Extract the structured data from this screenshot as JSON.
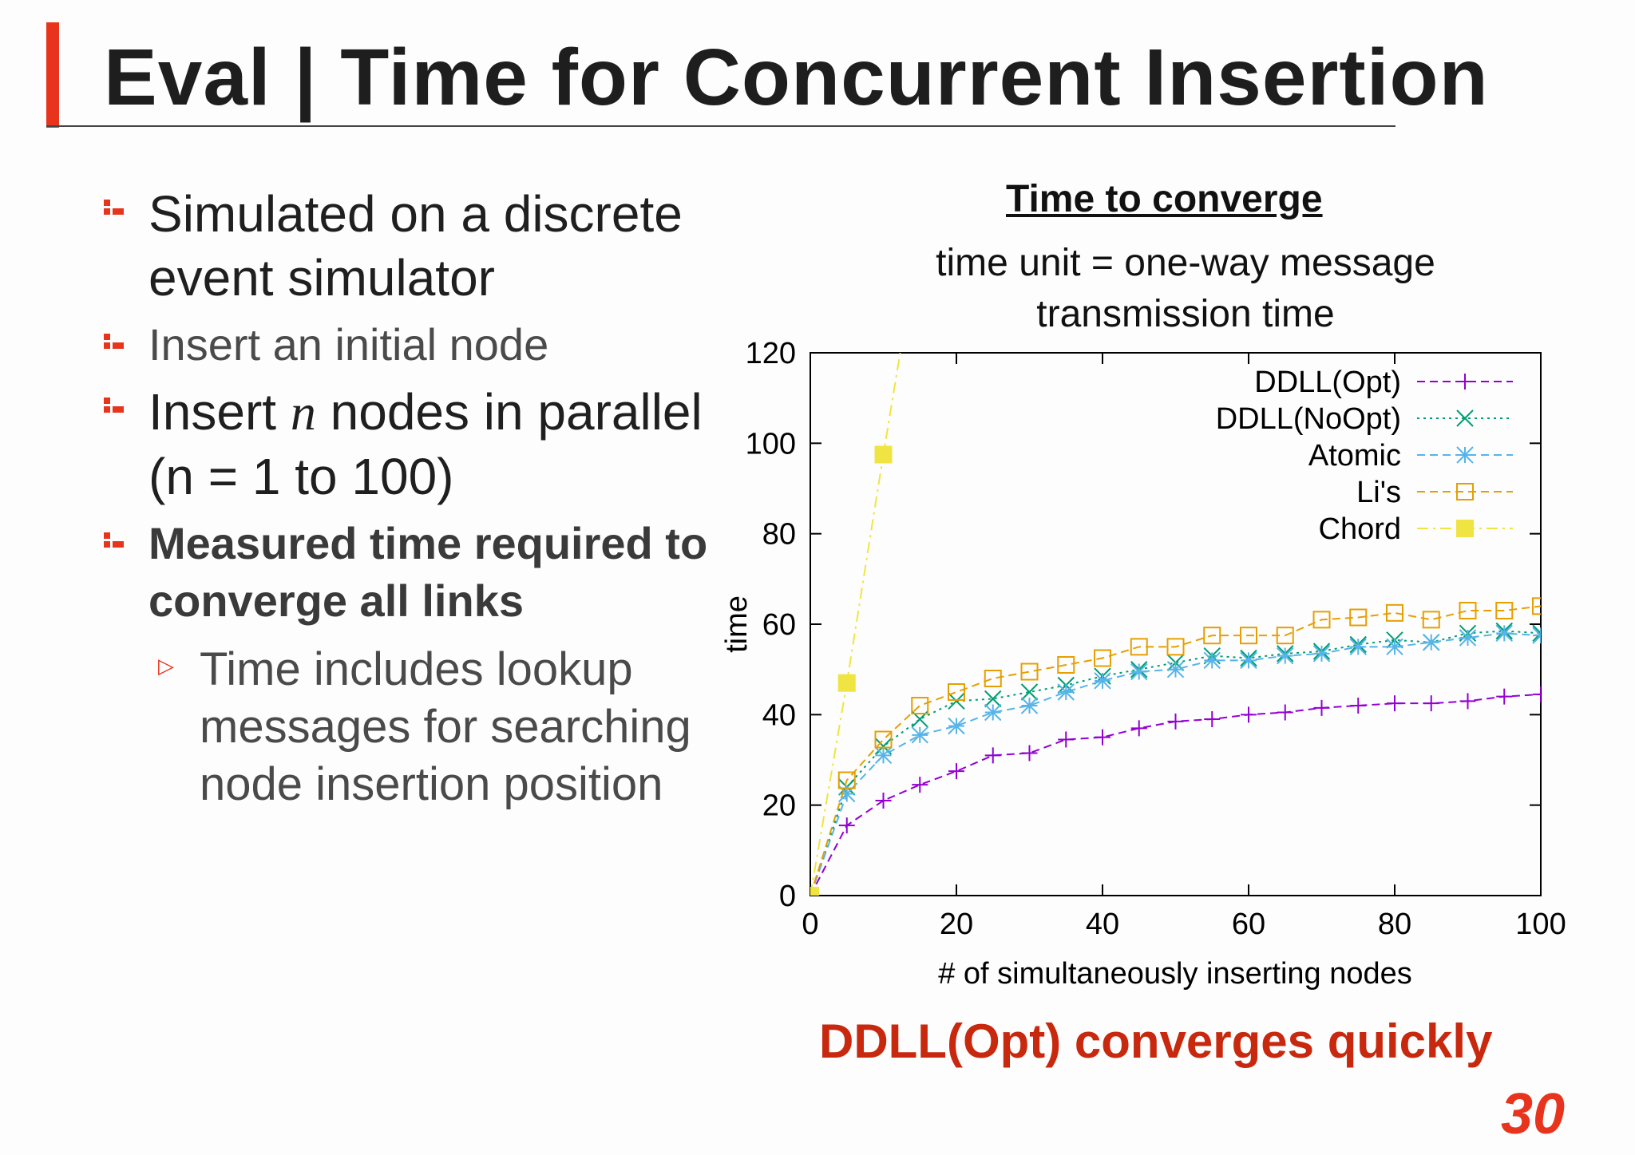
{
  "slide": {
    "title": "Eval | Time for Concurrent Insertion",
    "bullets": [
      "Simulated on a discrete event simulator",
      "Insert an initial node",
      {
        "pre": "Insert ",
        "var": "n",
        "post": " nodes in parallel",
        "line2": "(n = 1 to 100)"
      },
      "Measured time required to converge all links"
    ],
    "sub_bullet": "Time includes lookup messages for searching node insertion position",
    "conclusion": "DDLL(Opt) converges quickly",
    "page_number": "30",
    "accent_color": "#e8341c",
    "conclusion_color": "#c8290e"
  },
  "chart_heading": {
    "title": "Time to converge",
    "subtitle": "time unit = one-way message transmission time"
  },
  "chart_data": {
    "type": "line",
    "xlabel": "# of simultaneously inserting nodes",
    "ylabel": "time",
    "xlim": [
      0,
      100
    ],
    "ylim": [
      0,
      120
    ],
    "xticks": [
      0,
      20,
      40,
      60,
      80,
      100
    ],
    "yticks": [
      0,
      20,
      40,
      60,
      80,
      100,
      120
    ],
    "grid": false,
    "legend_position": "top-right",
    "series": [
      {
        "name": "DDLL(Opt)",
        "color": "#9400d3",
        "marker": "plus",
        "dash": "dashed",
        "x": [
          0,
          5,
          10,
          15,
          20,
          25,
          30,
          35,
          40,
          45,
          50,
          55,
          60,
          65,
          70,
          75,
          80,
          85,
          90,
          95,
          100
        ],
        "y": [
          0,
          15.5,
          21,
          24.5,
          27.5,
          31,
          31.5,
          34.5,
          35,
          37,
          38.5,
          39,
          40,
          40.5,
          41.5,
          42,
          42.5,
          42.5,
          43,
          44,
          44.5
        ]
      },
      {
        "name": "DDLL(NoOpt)",
        "color": "#009e73",
        "marker": "x",
        "dash": "dotted",
        "x": [
          0,
          5,
          10,
          15,
          20,
          25,
          30,
          35,
          40,
          45,
          50,
          55,
          60,
          65,
          70,
          75,
          80,
          85,
          90,
          95,
          100
        ],
        "y": [
          0,
          24,
          33,
          39,
          43,
          43.5,
          45,
          46.5,
          48.5,
          50,
          51.5,
          53,
          52.5,
          53.5,
          54,
          55.5,
          56.5,
          56,
          58,
          58.5,
          58
        ]
      },
      {
        "name": "Atomic",
        "color": "#56b4e9",
        "marker": "asterisk",
        "dash": "dashed",
        "x": [
          0,
          5,
          10,
          15,
          20,
          25,
          30,
          35,
          40,
          45,
          50,
          55,
          60,
          65,
          70,
          75,
          80,
          85,
          90,
          95,
          100
        ],
        "y": [
          0,
          22.5,
          31,
          35.5,
          37.5,
          40.5,
          42,
          45,
          47.5,
          49.5,
          50,
          52,
          52,
          53,
          53.5,
          55,
          55,
          56,
          57,
          58,
          57.5
        ]
      },
      {
        "name": "Li's",
        "color": "#e69f00",
        "marker": "square",
        "dash": "dashed",
        "x": [
          0,
          5,
          10,
          15,
          20,
          25,
          30,
          35,
          40,
          45,
          50,
          55,
          60,
          65,
          70,
          75,
          80,
          85,
          90,
          95,
          100
        ],
        "y": [
          0,
          25.5,
          34.5,
          42,
          45,
          48,
          49.5,
          51,
          52.5,
          55,
          55,
          57.5,
          57.5,
          57.5,
          61,
          61.5,
          62.5,
          61,
          63,
          63,
          64
        ]
      },
      {
        "name": "Chord",
        "color": "#f0e442",
        "marker": "filled-square",
        "dash": "dash-dot",
        "x": [
          0,
          5,
          10,
          12.3
        ],
        "y": [
          0,
          47,
          97.5,
          120
        ]
      }
    ]
  }
}
